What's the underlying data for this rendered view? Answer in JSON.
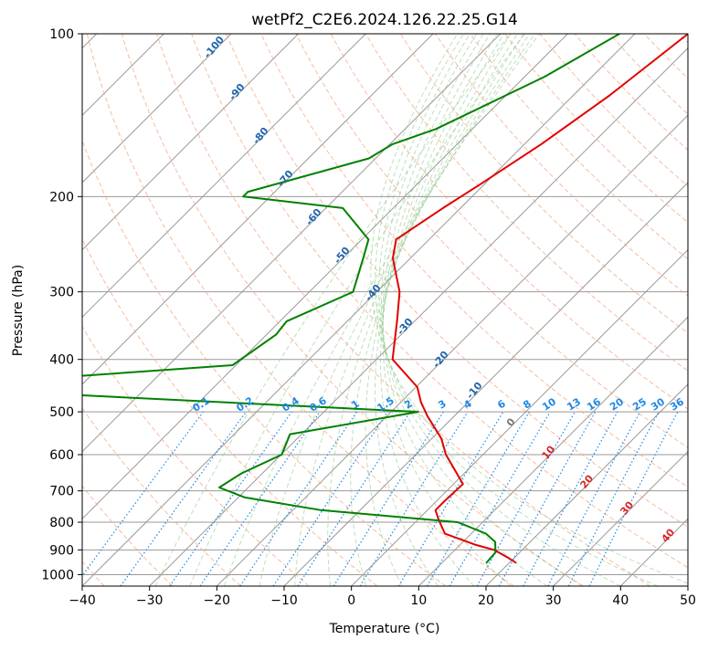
{
  "chart_data": {
    "type": "line",
    "title": "wetPf2_C2E6.2024.126.22.25.G14",
    "xlabel": "Temperature (°C)",
    "ylabel": "Pressure (hPa)",
    "xlim": [
      -40,
      50
    ],
    "ylim": [
      1050,
      100
    ],
    "y_scale": "log",
    "grid": true,
    "x_ticks": [
      -40,
      -30,
      -20,
      -10,
      0,
      10,
      20,
      30,
      40,
      50
    ],
    "y_ticks": [
      100,
      200,
      300,
      400,
      500,
      600,
      700,
      800,
      900,
      1000
    ],
    "x_tick_labels": [
      "−40",
      "−30",
      "−20",
      "−10",
      "0",
      "10",
      "20",
      "30",
      "40",
      "50"
    ],
    "y_tick_labels": [
      "100",
      "200",
      "300",
      "400",
      "500",
      "600",
      "700",
      "800",
      "900",
      "1000"
    ],
    "skew": "skew-T log-P",
    "series": [
      {
        "color": "#e00000",
        "points": [
          [
            -32.1,
            100
          ],
          [
            -34.6,
            130
          ],
          [
            -37.5,
            160
          ],
          [
            -40.6,
            190
          ],
          [
            -42.6,
            210
          ],
          [
            -44.9,
            240
          ],
          [
            -42.6,
            260
          ],
          [
            -36.6,
            300
          ],
          [
            -32.6,
            340
          ],
          [
            -27.6,
            400
          ],
          [
            -19.8,
            450
          ],
          [
            -17.0,
            480
          ],
          [
            -13.9,
            510
          ],
          [
            -8.6,
            560
          ],
          [
            -5.5,
            600
          ],
          [
            1.4,
            680
          ],
          [
            1.2,
            730
          ],
          [
            1.2,
            760
          ],
          [
            3.0,
            790
          ],
          [
            6.1,
            840
          ],
          [
            12.2,
            880
          ],
          [
            15.8,
            900
          ],
          [
            19.0,
            930
          ],
          [
            20.9,
            950
          ]
        ]
      },
      {
        "color": "#008000",
        "points": [
          [
            -42.3,
            100
          ],
          [
            -47.0,
            120
          ],
          [
            -55.4,
            150
          ],
          [
            -59.6,
            160
          ],
          [
            -61.0,
            170
          ],
          [
            -74.0,
            196
          ],
          [
            -74.0,
            200
          ],
          [
            -57.5,
            210
          ],
          [
            -49.0,
            240
          ],
          [
            -47.0,
            260
          ],
          [
            -43.5,
            300
          ],
          [
            -49.0,
            340
          ],
          [
            -48.6,
            360
          ],
          [
            -50.5,
            410
          ],
          [
            -88.0,
            445
          ],
          [
            -86.3,
            455
          ],
          [
            -16.0,
            500
          ],
          [
            -31.7,
            550
          ],
          [
            -29.9,
            600
          ],
          [
            -33.1,
            650
          ],
          [
            -34.3,
            690
          ],
          [
            -29.0,
            720
          ],
          [
            -15.8,
            760
          ],
          [
            6.3,
            800
          ],
          [
            12.2,
            840
          ],
          [
            14.8,
            870
          ],
          [
            16.4,
            910
          ],
          [
            16.6,
            950
          ]
        ]
      }
    ],
    "mixing_ratio_labels": [
      "0.1",
      "0.2",
      "0.4",
      "0.6",
      "1",
      "1.5",
      "2",
      "3",
      "4",
      "6",
      "8",
      "10",
      "13",
      "16",
      "20",
      "25",
      "30",
      "36"
    ],
    "dry_adiabat_labels": [
      "-100",
      "-90",
      "-80",
      "-70",
      "-60",
      "-50",
      "-40",
      "-30",
      "-20",
      "-10"
    ],
    "moist_adiabat_labels": [
      "0",
      "10",
      "20",
      "30",
      "40"
    ],
    "colors": {
      "temperature": "#e00000",
      "dewpoint": "#008000",
      "isotherm": "#999999",
      "dry_adiabat": "#f4a582",
      "moist_adiabat": "#7fbf7b",
      "mixing_ratio": "#1e88e5",
      "dry_adiabat_label": "#2166ac",
      "moist_adiabat_label": "#d62728",
      "zero_label": "#777777"
    }
  }
}
